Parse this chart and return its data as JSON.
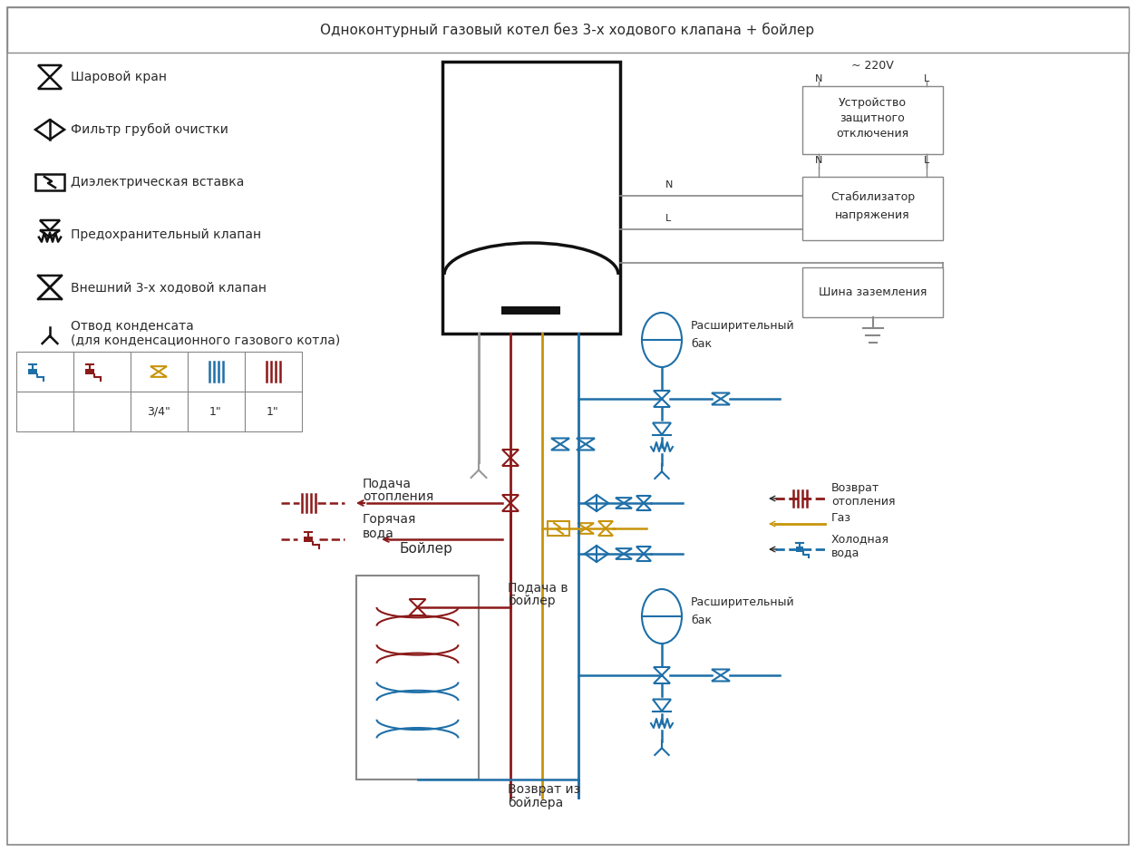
{
  "title": "Одноконтурный газовый котел без 3-х ходового клапана + бойлер",
  "bg": "#ffffff",
  "tc": "#2b2b2b",
  "ch": "#8b1a1a",
  "cg": "#c8940a",
  "cc": "#1e6fa8",
  "ce": "#555555",
  "cgr": "#888888",
  "ck": "#111111",
  "legend": [
    "Шаровой кран",
    "Фильтр грубой очистки",
    "Диэлектрическая вставка",
    "Предохранительный клапан",
    "Внешний 3-х ходовой клапан",
    "Отвод конденсата\n(для конденсационного газового котла)"
  ]
}
